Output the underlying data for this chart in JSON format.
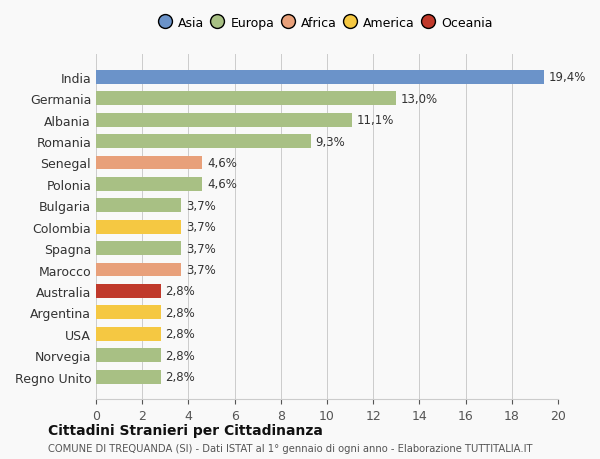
{
  "categories": [
    "Regno Unito",
    "Norvegia",
    "USA",
    "Argentina",
    "Australia",
    "Marocco",
    "Spagna",
    "Colombia",
    "Bulgaria",
    "Polonia",
    "Senegal",
    "Romania",
    "Albania",
    "Germania",
    "India"
  ],
  "values": [
    2.8,
    2.8,
    2.8,
    2.8,
    2.8,
    3.7,
    3.7,
    3.7,
    3.7,
    4.6,
    4.6,
    9.3,
    11.1,
    13.0,
    19.4
  ],
  "labels": [
    "2,8%",
    "2,8%",
    "2,8%",
    "2,8%",
    "2,8%",
    "3,7%",
    "3,7%",
    "3,7%",
    "3,7%",
    "4,6%",
    "4,6%",
    "9,3%",
    "11,1%",
    "13,0%",
    "19,4%"
  ],
  "colors": [
    "#a8c084",
    "#a8c084",
    "#f5c842",
    "#f5c842",
    "#c0392b",
    "#e8a07a",
    "#a8c084",
    "#f5c842",
    "#a8c084",
    "#a8c084",
    "#e8a07a",
    "#a8c084",
    "#a8c084",
    "#a8c084",
    "#6b93c9"
  ],
  "continent": [
    "Europa",
    "Europa",
    "America",
    "America",
    "Oceania",
    "Africa",
    "Europa",
    "America",
    "Europa",
    "Europa",
    "Africa",
    "Europa",
    "Europa",
    "Europa",
    "Asia"
  ],
  "legend_labels": [
    "Asia",
    "Europa",
    "Africa",
    "America",
    "Oceania"
  ],
  "legend_colors": [
    "#6b93c9",
    "#a8c084",
    "#e8a07a",
    "#f5c842",
    "#c0392b"
  ],
  "title": "Cittadini Stranieri per Cittadinanza",
  "subtitle": "COMUNE DI TREQUANDA (SI) - Dati ISTAT al 1° gennaio di ogni anno - Elaborazione TUTTITALIA.IT",
  "xlim": [
    0,
    20
  ],
  "xticks": [
    0,
    2,
    4,
    6,
    8,
    10,
    12,
    14,
    16,
    18,
    20
  ],
  "background_color": "#f9f9f9"
}
